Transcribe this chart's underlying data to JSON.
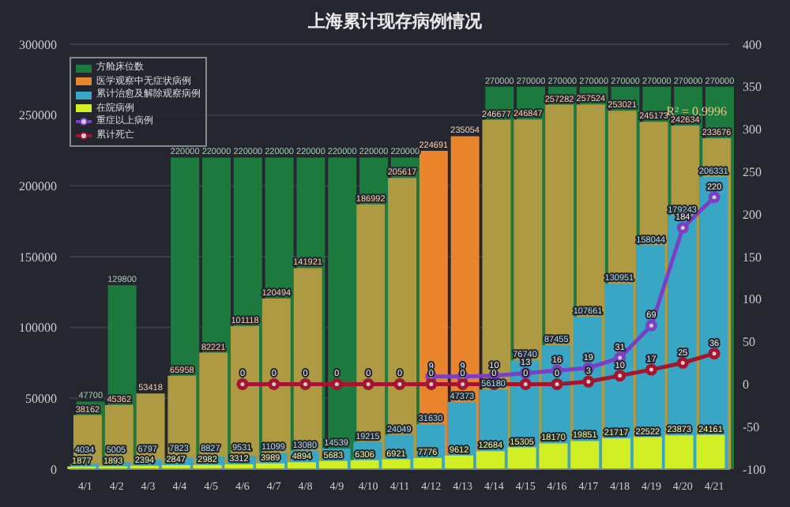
{
  "chart_data": {
    "type": "bar",
    "title": "上海累计现存病例情况",
    "categories": [
      "4/1",
      "4/2",
      "4/3",
      "4/4",
      "4/5",
      "4/6",
      "4/7",
      "4/8",
      "4/9",
      "4/10",
      "4/11",
      "4/12",
      "4/13",
      "4/14",
      "4/15",
      "4/16",
      "4/17",
      "4/18",
      "4/19",
      "4/20",
      "4/21"
    ],
    "series": [
      {
        "name": "方舱床位数",
        "color": "#1d7a3e",
        "values": [
          47700,
          129800,
          null,
          220000,
          220000,
          220000,
          220000,
          220000,
          220000,
          220000,
          220000,
          null,
          null,
          270000,
          270000,
          270000,
          270000,
          270000,
          270000,
          270000,
          270000
        ]
      },
      {
        "name": "医学观察中无症状病例",
        "color": "#e8842c",
        "colors": [
          "#ad9a42",
          "#ad9a42",
          "#ad9a42",
          "#ad9a42",
          "#ad9a42",
          "#ad9a42",
          "#ad9a42",
          "#ad9a42",
          "#ad9a42",
          "#ad9a42",
          "#ad9a42",
          "#e8842c",
          "#e8842c",
          "#ad9a42",
          "#ad9a42",
          "#ad9a42",
          "#ad9a42",
          "#ad9a42",
          "#ad9a42",
          "#ad9a42",
          "#ad9a42"
        ],
        "values": [
          38162,
          45362,
          53418,
          65958,
          82221,
          101118,
          120494,
          141921,
          null,
          186992,
          205617,
          224691,
          235054,
          246677,
          246847,
          257282,
          257524,
          253021,
          245173,
          242634,
          233676
        ]
      },
      {
        "name": "累计治愈及解除观察病例",
        "color": "#3aa6c6",
        "values": [
          4034,
          5005,
          6797,
          7823,
          8827,
          9531,
          11099,
          13080,
          14539,
          19215,
          24049,
          31630,
          47373,
          56180,
          76740,
          87455,
          107661,
          130951,
          158044,
          179243,
          206331
        ]
      },
      {
        "name": "在院病例",
        "color": "#d2ee24",
        "values": [
          1877,
          1893,
          2394,
          2847,
          2982,
          3312,
          3989,
          4894,
          5683,
          6306,
          6921,
          7776,
          9612,
          12684,
          15305,
          18170,
          19851,
          21717,
          22522,
          23873,
          24161
        ]
      },
      {
        "name": "重症以上病例",
        "type": "line",
        "axis": "y2",
        "color": "#7b3fc4",
        "values": [
          null,
          null,
          null,
          null,
          null,
          null,
          null,
          null,
          null,
          null,
          null,
          9,
          9,
          10,
          13,
          16,
          19,
          31,
          69,
          184,
          220
        ]
      },
      {
        "name": "累计死亡",
        "type": "line",
        "axis": "y2",
        "color": "#a3162e",
        "values": [
          null,
          null,
          null,
          null,
          null,
          0,
          0,
          0,
          0,
          0,
          0,
          0,
          0,
          0,
          0,
          0,
          3,
          10,
          17,
          25,
          36
        ]
      }
    ],
    "ylim": [
      0,
      300000
    ],
    "yticks": [
      0,
      50000,
      100000,
      150000,
      200000,
      250000,
      300000
    ],
    "y2lim": [
      -100,
      400
    ],
    "y2ticks": [
      -100,
      -50,
      0,
      50,
      100,
      150,
      200,
      250,
      300,
      350,
      400
    ],
    "grid": "y",
    "legend": "top left",
    "data_labels": true,
    "marker": "circle",
    "annotations": [
      "R² = 0.9996"
    ]
  }
}
